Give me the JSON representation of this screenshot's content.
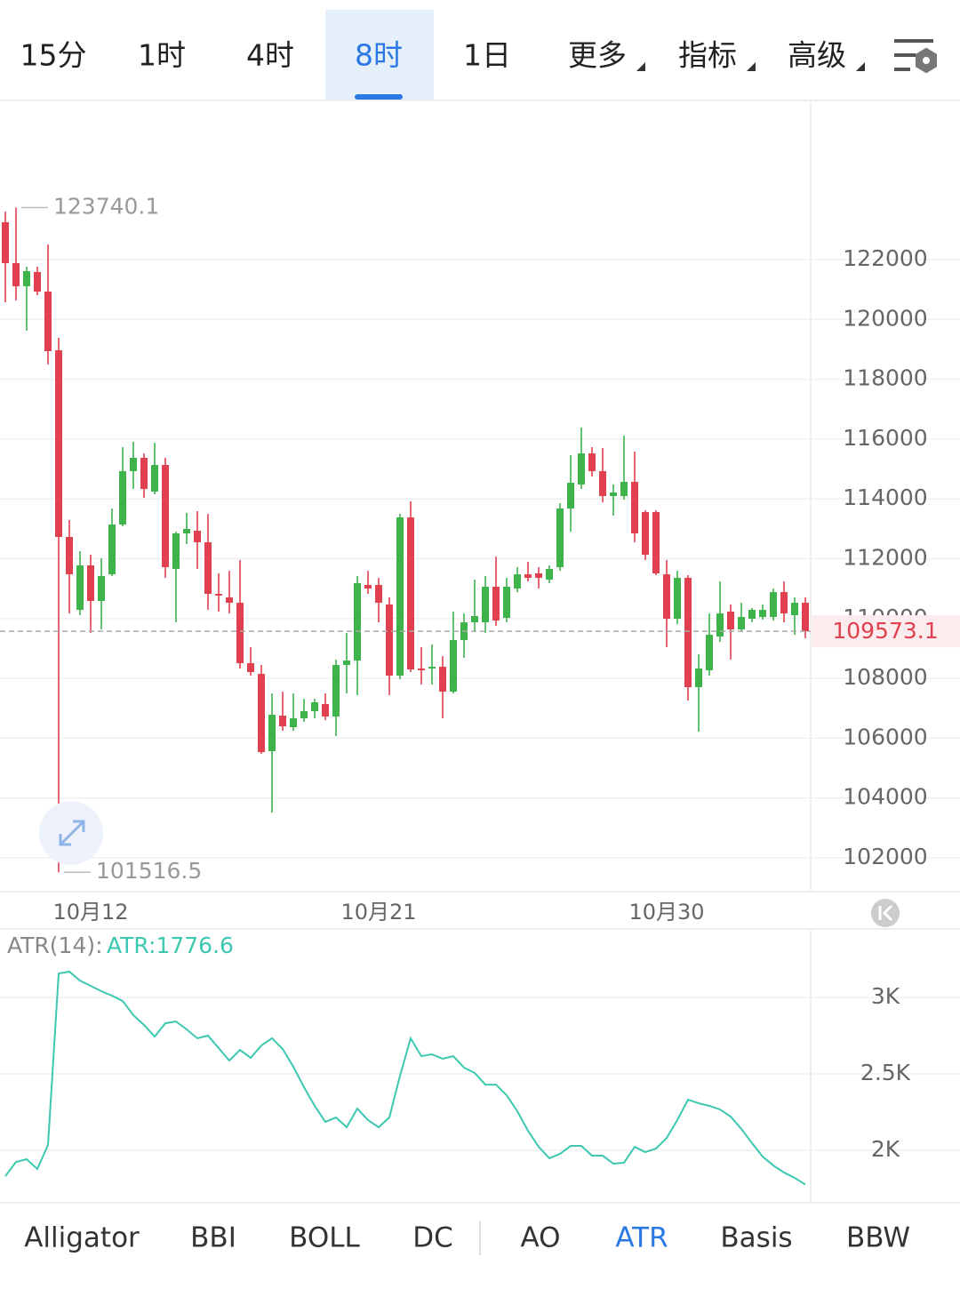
{
  "tabs": [
    "15分",
    "1时",
    "4时",
    "8时",
    "1日",
    "更多",
    "指标",
    "高级"
  ],
  "active_tab": 3,
  "chart_data": [
    {
      "type": "candlestick",
      "categories": [
        null,
        null,
        null,
        null,
        null,
        null,
        null,
        null,
        "10月12",
        null,
        null,
        null,
        null,
        null,
        null,
        null,
        null,
        null,
        null,
        null,
        null,
        null,
        null,
        null,
        null,
        null,
        null,
        null,
        null,
        null,
        null,
        null,
        null,
        null,
        null,
        "10月21",
        null,
        null,
        null,
        null,
        null,
        null,
        null,
        null,
        null,
        null,
        null,
        null,
        null,
        null,
        null,
        null,
        null,
        null,
        null,
        null,
        null,
        null,
        null,
        null,
        null,
        null,
        "10月30",
        null,
        null,
        null,
        null,
        null,
        null,
        null,
        null,
        null,
        null,
        null,
        null,
        null
      ],
      "open": [
        123248,
        121881,
        121108,
        121584,
        120930,
        118968,
        112727,
        110290,
        111776,
        110587,
        111479,
        113143,
        114926,
        115372,
        114243,
        115134,
        111657,
        112846,
        112935,
        112549,
        110825,
        110706,
        110528,
        108507,
        108150,
        105565,
        106753,
        106367,
        106664,
        106902,
        107140,
        106724,
        108447,
        108596,
        111122,
        111122,
        110468,
        108091,
        113381,
        108329,
        108329,
        108388,
        107556,
        109280,
        109874,
        109874,
        111063,
        110023,
        111003,
        111479,
        111509,
        111301,
        111717,
        113678,
        114481,
        115521,
        114926,
        114094,
        114094,
        114570,
        113559,
        113559,
        111479,
        109993,
        111360,
        107704,
        108269,
        109398,
        110231,
        109636,
        109993,
        110052,
        110052,
        110884,
        110112,
        110528
      ],
      "high": [
        123605,
        123740.1,
        121762,
        121762,
        122505,
        119384,
        113292,
        112252,
        112133,
        112014,
        113678,
        115729,
        115907,
        115521,
        115877,
        115372,
        112905,
        113530,
        113589,
        113500,
        111509,
        111598,
        111954,
        109042,
        108447,
        107496,
        107556,
        107496,
        107318,
        107318,
        107496,
        108626,
        109517,
        111419,
        111598,
        111360,
        110706,
        113500,
        113916,
        109042,
        109131,
        108745,
        110231,
        110171,
        111301,
        111419,
        112073,
        111360,
        111717,
        111895,
        111717,
        111776,
        113856,
        115461,
        116383,
        115729,
        115699,
        114481,
        116115,
        115580,
        113619,
        113619,
        111954,
        111598,
        111449,
        108804,
        110171,
        111241,
        110468,
        110528,
        110350,
        110468,
        111003,
        111241,
        110706,
        110706
      ],
      "low": [
        120573,
        120633,
        119622,
        120811,
        118493,
        101516.5,
        110171,
        110112,
        109517,
        109636,
        111419,
        113084,
        114332,
        114035,
        114154,
        111360,
        109874,
        112489,
        111657,
        110290,
        110231,
        110171,
        108329,
        108091,
        105475,
        103514,
        106248,
        106248,
        106545,
        106664,
        106605,
        106070,
        107496,
        107437,
        110825,
        109874,
        107437,
        107972,
        108210,
        107794,
        107794,
        106664,
        107496,
        108685,
        109577,
        109517,
        109755,
        109874,
        110884,
        111241,
        111003,
        111182,
        111598,
        112905,
        114332,
        114748,
        113886,
        113440,
        113975,
        112549,
        111954,
        111449,
        109042,
        109815,
        107259,
        106218,
        108091,
        109220,
        108626,
        109577,
        109874,
        109964,
        109933,
        109874,
        109458,
        109339
      ],
      "close": [
        121881,
        121108,
        121613,
        120930,
        118939,
        112727,
        111479,
        111776,
        110587,
        111419,
        113143,
        114926,
        115372,
        114332,
        115134,
        111717,
        112846,
        112995,
        112549,
        110825,
        110766,
        110528,
        108507,
        108210,
        105535,
        106783,
        106397,
        106664,
        106902,
        107199,
        106724,
        108447,
        108596,
        111182,
        111003,
        110528,
        108091,
        113381,
        108299,
        108269,
        108388,
        107556,
        109280,
        109874,
        110082,
        111063,
        109933,
        111063,
        111479,
        111360,
        111360,
        111657,
        113678,
        114540,
        115521,
        114926,
        114094,
        114213,
        114570,
        112846,
        112133,
        111509,
        109993,
        111360,
        107704,
        108329,
        109458,
        110171,
        109636,
        110052,
        110290,
        110290,
        110884,
        110171,
        110528,
        109573.1
      ],
      "up_color": "#3db34a",
      "down_color": "#e0404f",
      "ylim": [
        100870,
        127320
      ],
      "yticks": [
        102000,
        104000,
        106000,
        108000,
        110000,
        112000,
        114000,
        116000,
        118000,
        120000,
        122000
      ],
      "max_price": 123740.1,
      "min_price": 101516.5,
      "last_price": 109573.1,
      "grid": true
    },
    {
      "type": "line",
      "indicator": "ATR(14):",
      "last_value_label": "ATR:1776.6",
      "color": "#3cc8b0",
      "values": [
        1831,
        1924,
        1942,
        1878,
        2035,
        3157,
        3169,
        3110,
        3076,
        3041,
        3012,
        2977,
        2884,
        2820,
        2744,
        2831,
        2843,
        2791,
        2733,
        2750,
        2669,
        2587,
        2657,
        2605,
        2686,
        2733,
        2663,
        2547,
        2413,
        2291,
        2186,
        2215,
        2151,
        2273,
        2198,
        2151,
        2215,
        2488,
        2733,
        2616,
        2628,
        2599,
        2616,
        2541,
        2506,
        2430,
        2430,
        2360,
        2256,
        2128,
        2023,
        1948,
        1977,
        2029,
        2029,
        1965,
        1965,
        1913,
        1919,
        2023,
        1988,
        2012,
        2081,
        2198,
        2331,
        2308,
        2291,
        2267,
        2221,
        2140,
        2047,
        1959,
        1901,
        1855,
        1820,
        1776.6
      ],
      "ylim": [
        1657,
        3448
      ],
      "yticks": [
        {
          "value": 2000,
          "label": "2K"
        },
        {
          "value": 2500,
          "label": "2.5K"
        },
        {
          "value": 3000,
          "label": "3K"
        }
      ],
      "grid": true
    }
  ],
  "indicator_tabs": [
    "Alligator",
    "BBI",
    "BOLL",
    "DC",
    "AO",
    "ATR",
    "Basis",
    "BBW"
  ],
  "active_indicator": 5
}
